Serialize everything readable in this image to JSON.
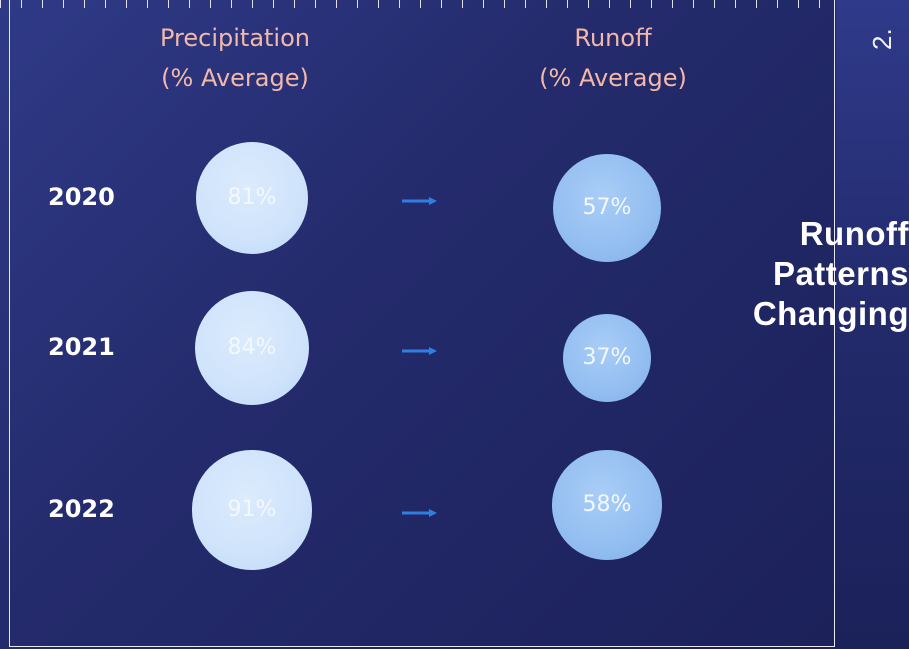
{
  "corner_text": "2.",
  "side_title": [
    "Runoff",
    "Patterns",
    "Changing"
  ],
  "chart_data": {
    "type": "table",
    "columns": [
      {
        "name": "Precipitation",
        "unit": "(% Average)"
      },
      {
        "name": "Runoff",
        "unit": "(% Average)"
      }
    ],
    "rows": [
      {
        "year": "2020",
        "precipitation": 81,
        "runoff": 57,
        "precipitation_label": "81%",
        "runoff_label": "57%"
      },
      {
        "year": "2021",
        "precipitation": 84,
        "runoff": 37,
        "precipitation_label": "84%",
        "runoff_label": "37%"
      },
      {
        "year": "2022",
        "precipitation": 91,
        "runoff": 58,
        "precipitation_label": "91%",
        "runoff_label": "58%"
      }
    ]
  },
  "colors": {
    "header_text": "#f4b8a8",
    "precip_bubble": "#d2e5fc",
    "runoff_bubble": "#93bef1",
    "arrow": "#2f7fe0"
  }
}
